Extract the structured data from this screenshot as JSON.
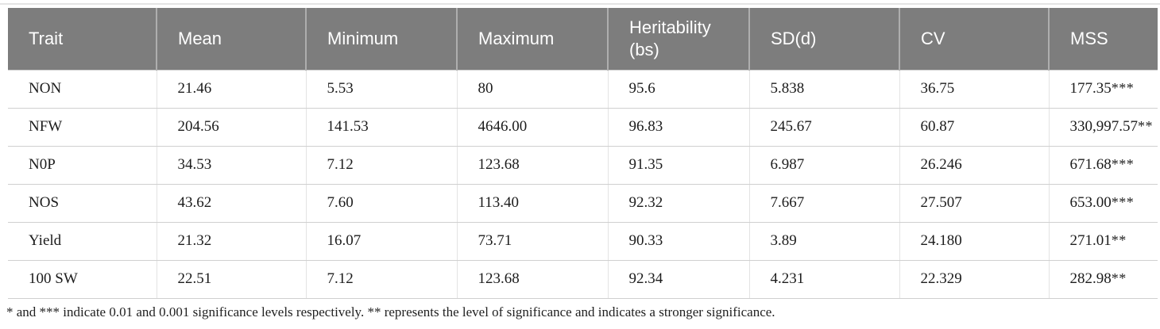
{
  "table": {
    "columns": [
      "Trait",
      "Mean",
      "Minimum",
      "Maximum",
      "Heritability (bs)",
      "SD(d)",
      "CV",
      "MSS"
    ],
    "rows": [
      {
        "trait": "NON",
        "mean": "21.46",
        "minimum": "5.53",
        "maximum": "80",
        "heritability": "95.6",
        "sd": "5.838",
        "cv": "36.75",
        "mss": "177.35",
        "sig": "***"
      },
      {
        "trait": "NFW",
        "mean": "204.56",
        "minimum": "141.53",
        "maximum": "4646.00",
        "heritability": "96.83",
        "sd": "245.67",
        "cv": "60.87",
        "mss": "330,997.57",
        "sig": "**"
      },
      {
        "trait": "N0P",
        "mean": "34.53",
        "minimum": "7.12",
        "maximum": "123.68",
        "heritability": "91.35",
        "sd": "6.987",
        "cv": "26.246",
        "mss": "671.68",
        "sig": "***"
      },
      {
        "trait": "NOS",
        "mean": "43.62",
        "minimum": "7.60",
        "maximum": "113.40",
        "heritability": "92.32",
        "sd": "7.667",
        "cv": "27.507",
        "mss": "653.00",
        "sig": "***"
      },
      {
        "trait": "Yield",
        "mean": "21.32",
        "minimum": "16.07",
        "maximum": "73.71",
        "heritability": "90.33",
        "sd": "3.89",
        "cv": "24.180",
        "mss": "271.01",
        "sig": "**"
      },
      {
        "trait": "100 SW",
        "mean": "22.51",
        "minimum": "7.12",
        "maximum": "123.68",
        "heritability": "92.34",
        "sd": "4.231",
        "cv": "22.329",
        "mss": "282.98",
        "sig": "**"
      }
    ]
  },
  "footnote": "* and *** indicate 0.01 and 0.001 significance levels respectively. ** represents the level of significance and indicates a stronger significance.",
  "colors": {
    "header_bg": "#7d7d7d",
    "header_text": "#ffffff",
    "row_border": "#d0d0d0"
  }
}
